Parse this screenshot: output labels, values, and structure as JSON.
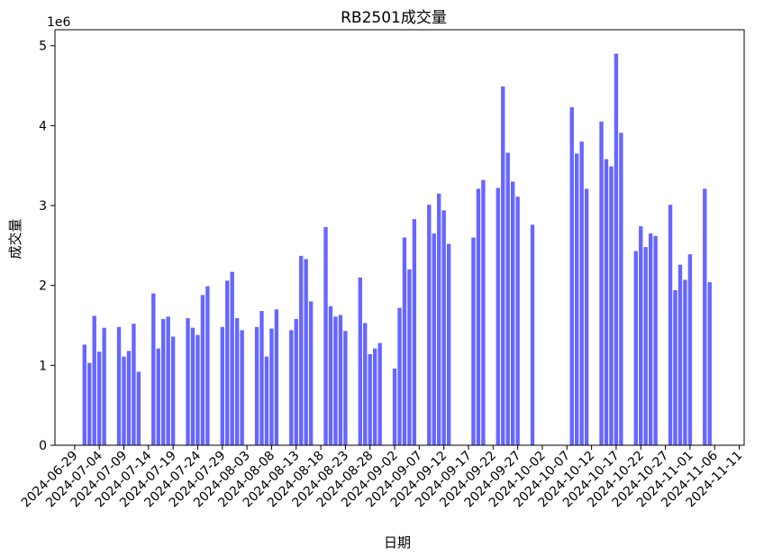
{
  "chart_data": {
    "type": "bar",
    "title": "RB2501成交量",
    "xlabel": "日期",
    "ylabel": "成交量",
    "y_offset_label": "1e6",
    "ylim": [
      0,
      5.2
    ],
    "y_ticks": [
      0,
      1,
      2,
      3,
      4,
      5
    ],
    "y_tick_labels": [
      "0",
      "1",
      "2",
      "3",
      "4",
      "5"
    ],
    "x_range": [
      "2024-06-25",
      "2024-11-12"
    ],
    "x_ticks": [
      "2024-06-29",
      "2024-07-04",
      "2024-07-09",
      "2024-07-14",
      "2024-07-19",
      "2024-07-24",
      "2024-07-29",
      "2024-08-03",
      "2024-08-08",
      "2024-08-13",
      "2024-08-18",
      "2024-08-23",
      "2024-08-28",
      "2024-09-02",
      "2024-09-07",
      "2024-09-12",
      "2024-09-17",
      "2024-09-22",
      "2024-09-27",
      "2024-10-02",
      "2024-10-07",
      "2024-10-12",
      "2024-10-17",
      "2024-10-22",
      "2024-10-27",
      "2024-11-01",
      "2024-11-06",
      "2024-11-11"
    ],
    "bar_color": "#6666ff",
    "grid": false,
    "values_unit": "1e6",
    "data": [
      [
        "2024-07-01",
        1.26
      ],
      [
        "2024-07-02",
        1.03
      ],
      [
        "2024-07-03",
        1.62
      ],
      [
        "2024-07-04",
        1.17
      ],
      [
        "2024-07-05",
        1.47
      ],
      [
        "2024-07-08",
        1.48
      ],
      [
        "2024-07-09",
        1.11
      ],
      [
        "2024-07-10",
        1.18
      ],
      [
        "2024-07-11",
        1.52
      ],
      [
        "2024-07-12",
        0.92
      ],
      [
        "2024-07-15",
        1.9
      ],
      [
        "2024-07-16",
        1.21
      ],
      [
        "2024-07-17",
        1.58
      ],
      [
        "2024-07-18",
        1.61
      ],
      [
        "2024-07-19",
        1.36
      ],
      [
        "2024-07-22",
        1.59
      ],
      [
        "2024-07-23",
        1.47
      ],
      [
        "2024-07-24",
        1.38
      ],
      [
        "2024-07-25",
        1.88
      ],
      [
        "2024-07-26",
        1.99
      ],
      [
        "2024-07-29",
        1.48
      ],
      [
        "2024-07-30",
        2.06
      ],
      [
        "2024-07-31",
        2.17
      ],
      [
        "2024-08-01",
        1.59
      ],
      [
        "2024-08-02",
        1.44
      ],
      [
        "2024-08-05",
        1.48
      ],
      [
        "2024-08-06",
        1.68
      ],
      [
        "2024-08-07",
        1.11
      ],
      [
        "2024-08-08",
        1.46
      ],
      [
        "2024-08-09",
        1.7
      ],
      [
        "2024-08-12",
        1.44
      ],
      [
        "2024-08-13",
        1.58
      ],
      [
        "2024-08-14",
        2.37
      ],
      [
        "2024-08-15",
        2.33
      ],
      [
        "2024-08-16",
        1.8
      ],
      [
        "2024-08-19",
        2.73
      ],
      [
        "2024-08-20",
        1.74
      ],
      [
        "2024-08-21",
        1.61
      ],
      [
        "2024-08-22",
        1.63
      ],
      [
        "2024-08-23",
        1.43
      ],
      [
        "2024-08-26",
        2.1
      ],
      [
        "2024-08-27",
        1.53
      ],
      [
        "2024-08-28",
        1.14
      ],
      [
        "2024-08-29",
        1.21
      ],
      [
        "2024-08-30",
        1.28
      ],
      [
        "2024-09-02",
        0.96
      ],
      [
        "2024-09-03",
        1.72
      ],
      [
        "2024-09-04",
        2.6
      ],
      [
        "2024-09-05",
        2.2
      ],
      [
        "2024-09-06",
        2.83
      ],
      [
        "2024-09-09",
        3.01
      ],
      [
        "2024-09-10",
        2.65
      ],
      [
        "2024-09-11",
        3.15
      ],
      [
        "2024-09-12",
        2.94
      ],
      [
        "2024-09-13",
        2.52
      ],
      [
        "2024-09-18",
        2.6
      ],
      [
        "2024-09-19",
        3.21
      ],
      [
        "2024-09-20",
        3.32
      ],
      [
        "2024-09-23",
        3.22
      ],
      [
        "2024-09-24",
        4.49
      ],
      [
        "2024-09-25",
        3.66
      ],
      [
        "2024-09-26",
        3.3
      ],
      [
        "2024-09-27",
        3.11
      ],
      [
        "2024-09-30",
        2.76
      ],
      [
        "2024-10-08",
        4.23
      ],
      [
        "2024-10-09",
        3.65
      ],
      [
        "2024-10-10",
        3.8
      ],
      [
        "2024-10-11",
        3.21
      ],
      [
        "2024-10-14",
        4.05
      ],
      [
        "2024-10-15",
        3.58
      ],
      [
        "2024-10-16",
        3.49
      ],
      [
        "2024-10-17",
        4.9
      ],
      [
        "2024-10-18",
        3.91
      ],
      [
        "2024-10-21",
        2.43
      ],
      [
        "2024-10-22",
        2.74
      ],
      [
        "2024-10-23",
        2.48
      ],
      [
        "2024-10-24",
        2.65
      ],
      [
        "2024-10-25",
        2.62
      ],
      [
        "2024-10-28",
        3.01
      ],
      [
        "2024-10-29",
        1.94
      ],
      [
        "2024-10-30",
        2.26
      ],
      [
        "2024-10-31",
        2.07
      ],
      [
        "2024-11-01",
        2.39
      ],
      [
        "2024-11-04",
        3.21
      ],
      [
        "2024-11-05",
        2.04
      ]
    ]
  }
}
